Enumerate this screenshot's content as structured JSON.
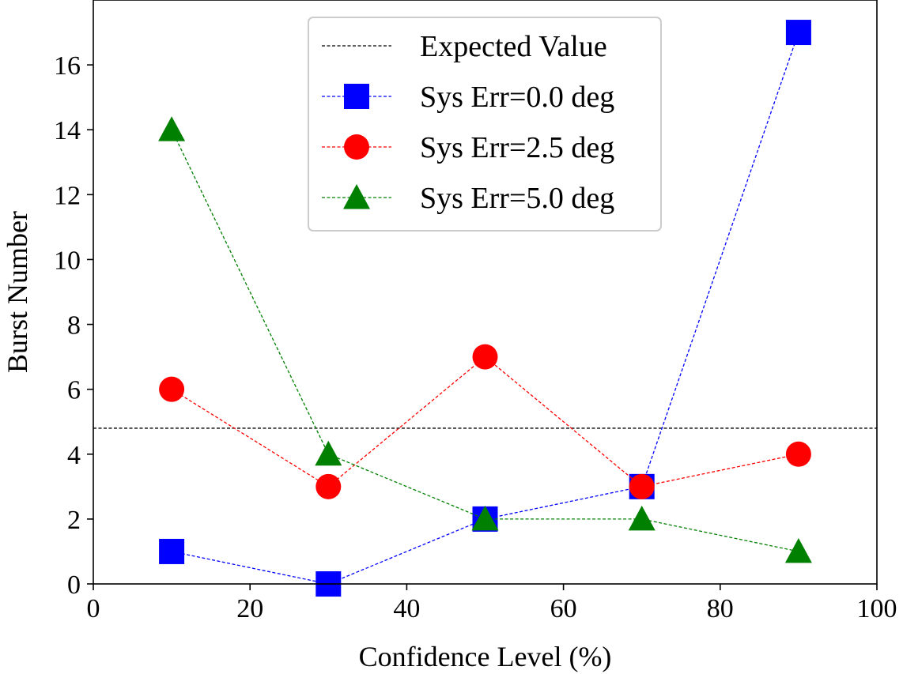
{
  "chart_data": {
    "type": "line",
    "title": "",
    "xlabel": "Confidence Level (%)",
    "ylabel": "Burst Number",
    "xlim": [
      0,
      100
    ],
    "ylim": [
      0,
      18
    ],
    "xticks": [
      0,
      20,
      40,
      60,
      80,
      100
    ],
    "yticks": [
      0,
      2,
      4,
      6,
      8,
      10,
      12,
      14,
      16
    ],
    "x": [
      10,
      30,
      50,
      70,
      90
    ],
    "expected_value": 4.8,
    "legend_position": "top-center",
    "series": [
      {
        "name": "Expected Value",
        "kind": "hline",
        "value": 4.8,
        "color": "#000000",
        "marker": "none"
      },
      {
        "name": "Sys Err=0.0 deg",
        "kind": "line",
        "values": [
          1,
          0,
          2,
          3,
          17
        ],
        "color": "#0000ff",
        "marker": "square"
      },
      {
        "name": "Sys Err=2.5 deg",
        "kind": "line",
        "values": [
          6,
          3,
          7,
          3,
          4
        ],
        "color": "#ff0000",
        "marker": "circle"
      },
      {
        "name": "Sys Err=5.0 deg",
        "kind": "line",
        "values": [
          14,
          4,
          2,
          2,
          1
        ],
        "color": "#008000",
        "marker": "triangle"
      }
    ]
  }
}
